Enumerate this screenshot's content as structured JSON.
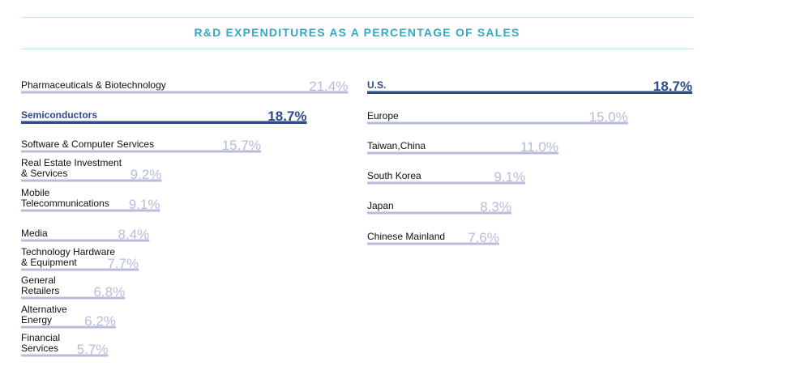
{
  "colors": {
    "accent_line": "#bfe6ea",
    "title": "#3aa6c0",
    "bar_default": "#b9bbdb",
    "bar_highlight": "#2e4b87",
    "label": "#111111"
  },
  "chart_data": [
    {
      "type": "bar",
      "orientation": "horizontal",
      "title": "R&D EXPENDITURES AS A PERCENTAGE OF SALES",
      "categories": [
        "Pharmaceuticals & Biotechnology",
        "Semiconductors",
        "Software & Computer Services",
        "Real Estate Investment & Services",
        "Mobile Telecommunications",
        "Media",
        "Technology Hardware & Equipment",
        "General Retailers",
        "Alternative Energy",
        "Financial Services"
      ],
      "label_lines": [
        [
          "Pharmaceuticals & Biotechnology"
        ],
        [
          "Semiconductors"
        ],
        [
          "Software & Computer Services"
        ],
        [
          "Real Estate Investment",
          "& Services"
        ],
        [
          "Mobile",
          "Telecommunications"
        ],
        [
          "Media"
        ],
        [
          "Technology Hardware",
          "& Equipment"
        ],
        [
          "General",
          "Retailers"
        ],
        [
          "Alternative",
          "Energy"
        ],
        [
          "Financial",
          "Services"
        ]
      ],
      "values": [
        21.4,
        18.7,
        15.7,
        9.2,
        9.1,
        8.4,
        7.7,
        6.8,
        6.2,
        5.7
      ],
      "value_labels": [
        "21.4%",
        "18.7%",
        "15.7%",
        "9.2%",
        "9.1%",
        "8.4%",
        "7.7%",
        "6.8%",
        "6.2%",
        "5.7%"
      ],
      "highlight": "Semiconductors",
      "unit": "%"
    },
    {
      "type": "bar",
      "orientation": "horizontal",
      "categories": [
        "U.S.",
        "Europe",
        "Taiwan,China",
        "South Korea",
        "Japan",
        "Chinese Mainland"
      ],
      "label_lines": [
        [
          "U.S."
        ],
        [
          "Europe"
        ],
        [
          "Taiwan,China"
        ],
        [
          "South Korea"
        ],
        [
          "Japan"
        ],
        [
          "Chinese Mainland"
        ]
      ],
      "values": [
        18.7,
        15.0,
        11.0,
        9.1,
        8.3,
        7.6
      ],
      "value_labels": [
        "18.7%",
        "15.0%",
        "11.0%",
        "9.1%",
        "8.3%",
        "7.6%"
      ],
      "highlight": "U.S.",
      "unit": "%"
    }
  ]
}
